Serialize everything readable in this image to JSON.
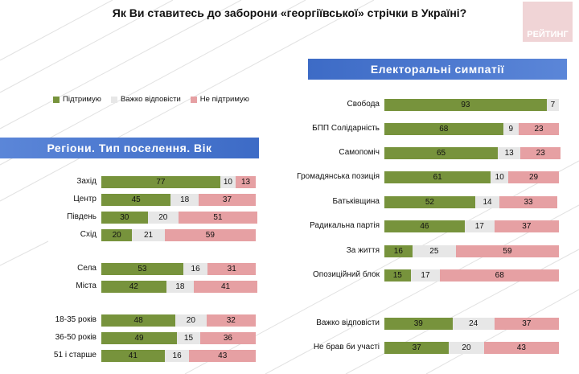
{
  "title": "Як Ви ставитесь до заборони «георгіївської» стрічки в Україні?",
  "logo_text": "РЕЙТИНГ",
  "colors": {
    "support": "#77933c",
    "hard": "#e7e7e7",
    "not": "#e6a0a3",
    "banner": "#4a77cf",
    "logo": "#f0d4d6"
  },
  "chart_data": [
    {
      "type": "bar",
      "stacked": true,
      "orientation": "horizontal",
      "title": "Регіони. Тип поселення. Вік",
      "legend": [
        "Підтримую",
        "Важко відповісти",
        "Не підтримую"
      ],
      "legend_position": "top-left",
      "categories": [
        "Захід",
        "Центр",
        "Південь",
        "Схід",
        "Села",
        "Міста",
        "18-35 років",
        "36-50 років",
        "51 і старше"
      ],
      "series": [
        {
          "name": "Підтримую",
          "values": [
            77,
            45,
            30,
            20,
            53,
            42,
            48,
            49,
            41
          ]
        },
        {
          "name": "Важко відповісти",
          "values": [
            10,
            18,
            20,
            21,
            16,
            18,
            20,
            15,
            16
          ]
        },
        {
          "name": "Не підтримую",
          "values": [
            13,
            37,
            51,
            59,
            31,
            41,
            32,
            36,
            43
          ]
        }
      ]
    },
    {
      "type": "bar",
      "stacked": true,
      "orientation": "horizontal",
      "title": "Електоральні симпатії",
      "categories": [
        "Свобода",
        "БПП Солідарність",
        "Самопоміч",
        "Громадянська позиція",
        "Батьківщина",
        "Радикальна партія",
        "За життя",
        "Опозиційний блок",
        "Важко відповісти",
        "Не брав би участі"
      ],
      "series": [
        {
          "name": "Підтримую",
          "values": [
            93,
            68,
            65,
            61,
            52,
            46,
            16,
            15,
            39,
            37
          ]
        },
        {
          "name": "Важко відповісти",
          "values": [
            7,
            9,
            13,
            10,
            14,
            17,
            25,
            17,
            24,
            20
          ]
        },
        {
          "name": "Не підтримую",
          "values": [
            0,
            23,
            23,
            29,
            33,
            37,
            59,
            68,
            37,
            43
          ]
        }
      ]
    }
  ]
}
